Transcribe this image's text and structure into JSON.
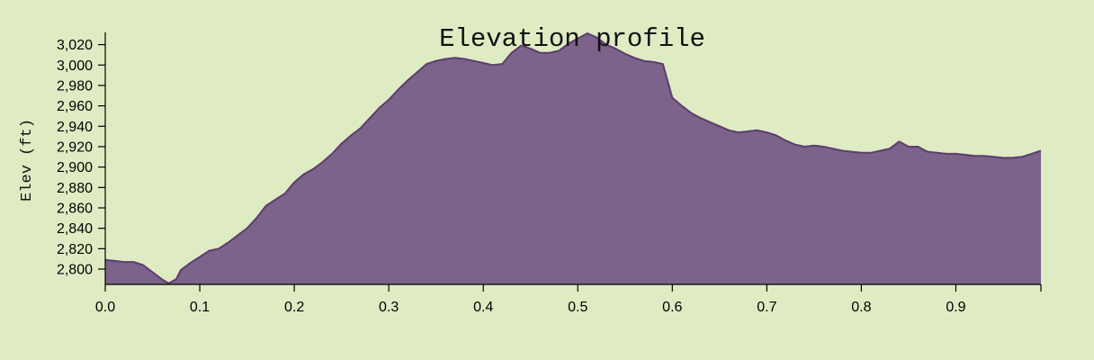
{
  "chart_data": {
    "type": "area",
    "title": "Elevation profile",
    "xlabel": "",
    "ylabel": "Elev (ft)",
    "xlim": [
      0,
      0.99
    ],
    "ylim": [
      2785,
      3032
    ],
    "x_ticks": [
      "0.0",
      "0.1",
      "0.2",
      "0.3",
      "0.4",
      "0.5",
      "0.6",
      "0.7",
      "0.8",
      "0.9"
    ],
    "x_tick_values": [
      0.0,
      0.1,
      0.2,
      0.3,
      0.4,
      0.5,
      0.6,
      0.7,
      0.8,
      0.9
    ],
    "y_ticks": [
      "2,800",
      "2,820",
      "2,840",
      "2,860",
      "2,880",
      "2,900",
      "2,920",
      "2,940",
      "2,960",
      "2,980",
      "3,000",
      "3,020"
    ],
    "y_tick_values": [
      2800,
      2820,
      2840,
      2860,
      2880,
      2900,
      2920,
      2940,
      2960,
      2980,
      3000,
      3020
    ],
    "grid": false,
    "legend": "none",
    "colors": {
      "fill": "#7b6389",
      "stroke": "#5c3d6e",
      "background": "#dfebc3"
    },
    "series": [
      {
        "x": [
          0.0,
          0.01,
          0.02,
          0.03,
          0.04,
          0.05,
          0.06,
          0.067,
          0.075,
          0.08,
          0.09,
          0.1,
          0.11,
          0.12,
          0.13,
          0.14,
          0.15,
          0.16,
          0.17,
          0.18,
          0.19,
          0.2,
          0.21,
          0.22,
          0.23,
          0.24,
          0.25,
          0.26,
          0.27,
          0.28,
          0.29,
          0.3,
          0.31,
          0.32,
          0.33,
          0.34,
          0.35,
          0.36,
          0.37,
          0.38,
          0.39,
          0.4,
          0.41,
          0.42,
          0.43,
          0.44,
          0.45,
          0.46,
          0.47,
          0.48,
          0.49,
          0.5,
          0.51,
          0.52,
          0.53,
          0.54,
          0.55,
          0.56,
          0.57,
          0.58,
          0.59,
          0.6,
          0.61,
          0.62,
          0.63,
          0.64,
          0.65,
          0.66,
          0.67,
          0.68,
          0.69,
          0.7,
          0.71,
          0.72,
          0.73,
          0.74,
          0.75,
          0.76,
          0.77,
          0.78,
          0.79,
          0.8,
          0.81,
          0.82,
          0.83,
          0.84,
          0.85,
          0.86,
          0.87,
          0.88,
          0.89,
          0.9,
          0.91,
          0.92,
          0.93,
          0.94,
          0.95,
          0.96,
          0.97,
          0.98,
          0.99
        ],
        "y": [
          2809,
          2808,
          2807,
          2807,
          2804,
          2797,
          2790,
          2786,
          2790,
          2799,
          2806,
          2812,
          2818,
          2820,
          2826,
          2833,
          2840,
          2850,
          2862,
          2868,
          2874,
          2885,
          2893,
          2898,
          2905,
          2913,
          2923,
          2931,
          2938,
          2948,
          2958,
          2966,
          2976,
          2985,
          2993,
          3001,
          3004,
          3006,
          3007,
          3006,
          3004,
          3002,
          3000,
          3001,
          3012,
          3019,
          3016,
          3012,
          3012,
          3014,
          3021,
          3026,
          3031,
          3027,
          3020,
          3016,
          3011,
          3007,
          3004,
          3003,
          3001,
          2968,
          2960,
          2953,
          2948,
          2944,
          2940,
          2936,
          2934,
          2935,
          2936,
          2934,
          2931,
          2926,
          2922,
          2920,
          2921,
          2920,
          2918,
          2916,
          2915,
          2914,
          2914,
          2916,
          2918,
          2925,
          2920,
          2920,
          2915,
          2914,
          2913,
          2913,
          2912,
          2911,
          2911,
          2910,
          2909,
          2909,
          2910,
          2913,
          2916
        ]
      }
    ]
  }
}
